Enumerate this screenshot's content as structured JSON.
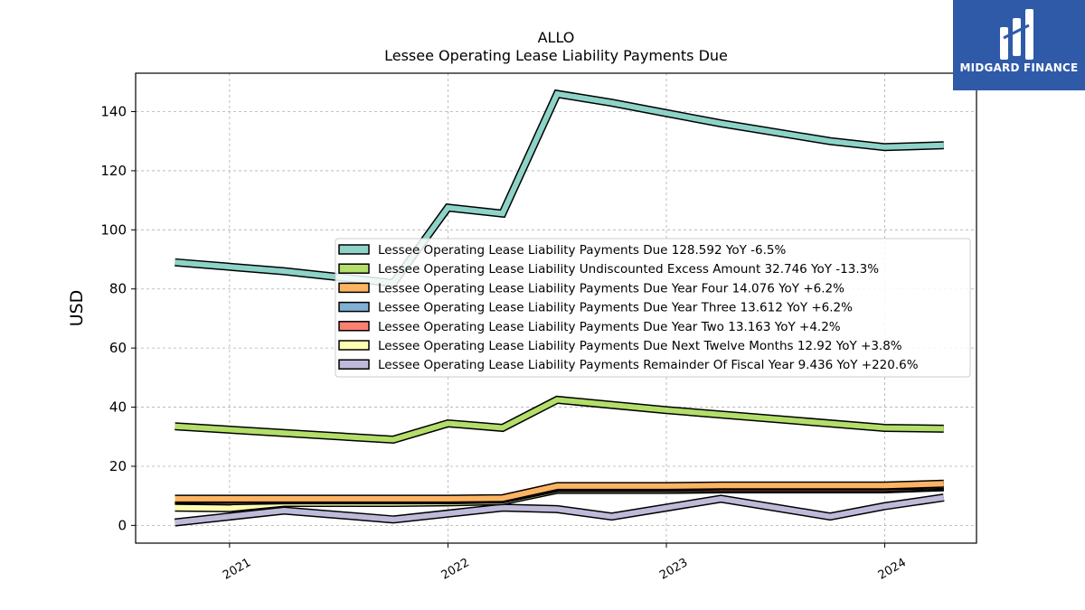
{
  "chart_data": {
    "type": "line",
    "title": "ALLO",
    "subtitle": "Lessee Operating Lease Liability Payments Due",
    "xlabel": "",
    "ylabel": "USD",
    "ylim": [
      -6,
      153
    ],
    "yticks": [
      0,
      20,
      40,
      60,
      80,
      100,
      120,
      140
    ],
    "xlim": [
      2020.57,
      2024.42
    ],
    "xticks": [
      {
        "value": 2021.0,
        "label": "2021"
      },
      {
        "value": 2022.0,
        "label": "2022"
      },
      {
        "value": 2023.0,
        "label": "2023"
      },
      {
        "value": 2024.0,
        "label": "2024"
      }
    ],
    "grid": true,
    "legend_position": "center-right",
    "series": [
      {
        "name": "Lessee Operating Lease Liability Payments Due",
        "legend": "Lessee Operating Lease Liability Payments Due  128.592 YoY -6.5%",
        "color": "#8dd3c7",
        "x": [
          2020.75,
          2021.25,
          2021.75,
          2022.0,
          2022.25,
          2022.5,
          2022.75,
          2023.0,
          2023.25,
          2023.75,
          2024.0,
          2024.27
        ],
        "y": [
          89,
          86,
          82,
          107.5,
          105.5,
          146,
          143,
          139.5,
          136,
          130,
          128,
          128.6
        ]
      },
      {
        "name": "Lessee Operating Lease Liability Undiscounted Excess Amount",
        "legend": "Lessee Operating Lease Liability Undiscounted Excess Amount  32.746 YoY -13.3%",
        "color": "#b3de69",
        "x": [
          2020.75,
          2021.75,
          2022.0,
          2022.25,
          2022.5,
          2023.0,
          2024.0,
          2024.27
        ],
        "y": [
          33.5,
          29,
          34.5,
          33,
          42.5,
          39,
          33,
          32.7
        ]
      },
      {
        "name": "Lessee Operating Lease Liability Payments Due Year Four",
        "legend": "Lessee Operating Lease Liability Payments Due Year Four  14.076 YoY +6.2%",
        "color": "#fdb462",
        "x": [
          2020.75,
          2021.25,
          2021.75,
          2022.0,
          2022.25,
          2022.5,
          2023.0,
          2023.25,
          2024.0,
          2024.27
        ],
        "y": [
          9,
          9,
          9,
          9,
          9.2,
          13.3,
          13.3,
          13.5,
          13.5,
          14.1
        ]
      },
      {
        "name": "Lessee Operating Lease Liability Payments Due Year Three",
        "legend": "Lessee Operating Lease Liability Payments Due Year Three  13.612 YoY +6.2%",
        "color": "#80b1d3",
        "x": [
          2020.75,
          2021.25,
          2021.75,
          2022.0,
          2022.25,
          2022.5,
          2023.0,
          2023.25,
          2024.0,
          2024.27
        ],
        "y": [
          8.8,
          8.8,
          8.8,
          8.8,
          9,
          13,
          13,
          13.2,
          13.2,
          13.6
        ]
      },
      {
        "name": "Lessee Operating Lease Liability Payments Due Year Two",
        "legend": "Lessee Operating Lease Liability Payments Due Year Two  13.163 YoY +4.2%",
        "color": "#fb8072",
        "x": [
          2020.75,
          2021.0,
          2021.25,
          2021.75,
          2022.0,
          2022.25,
          2022.5,
          2023.0,
          2023.25,
          2024.0,
          2024.27
        ],
        "y": [
          8.5,
          8.2,
          8.5,
          8.5,
          8.5,
          8.8,
          12.6,
          12.6,
          12.6,
          12.6,
          13.2
        ]
      },
      {
        "name": "Lessee Operating Lease Liability Payments Due Next Twelve Months",
        "legend": "Lessee Operating Lease Liability Payments Due Next Twelve Months  12.92 YoY +3.8%",
        "color": "#ffffb3",
        "x": [
          2020.75,
          2021.0,
          2021.25,
          2021.75,
          2022.0,
          2022.25,
          2022.5,
          2023.0,
          2023.25,
          2024.0,
          2024.27
        ],
        "y": [
          6,
          5.8,
          7.6,
          7.6,
          7.8,
          8.2,
          12,
          12,
          12.2,
          12.2,
          12.9
        ]
      },
      {
        "name": "Lessee Operating Lease Liability Payments Remainder Of Fiscal Year",
        "legend": "Lessee Operating Lease Liability Payments Remainder Of Fiscal Year  9.436 YoY +220.6%",
        "color": "#bebada",
        "x": [
          2020.75,
          2021.25,
          2021.75,
          2022.25,
          2022.5,
          2022.75,
          2023.25,
          2023.75,
          2024.0,
          2024.27
        ],
        "y": [
          1,
          5,
          2,
          6,
          5.5,
          3,
          9,
          3,
          6.5,
          9.4
        ]
      }
    ]
  },
  "watermark": {
    "text": "MIDGARD FINANCE",
    "background": "#2f5aa8"
  }
}
